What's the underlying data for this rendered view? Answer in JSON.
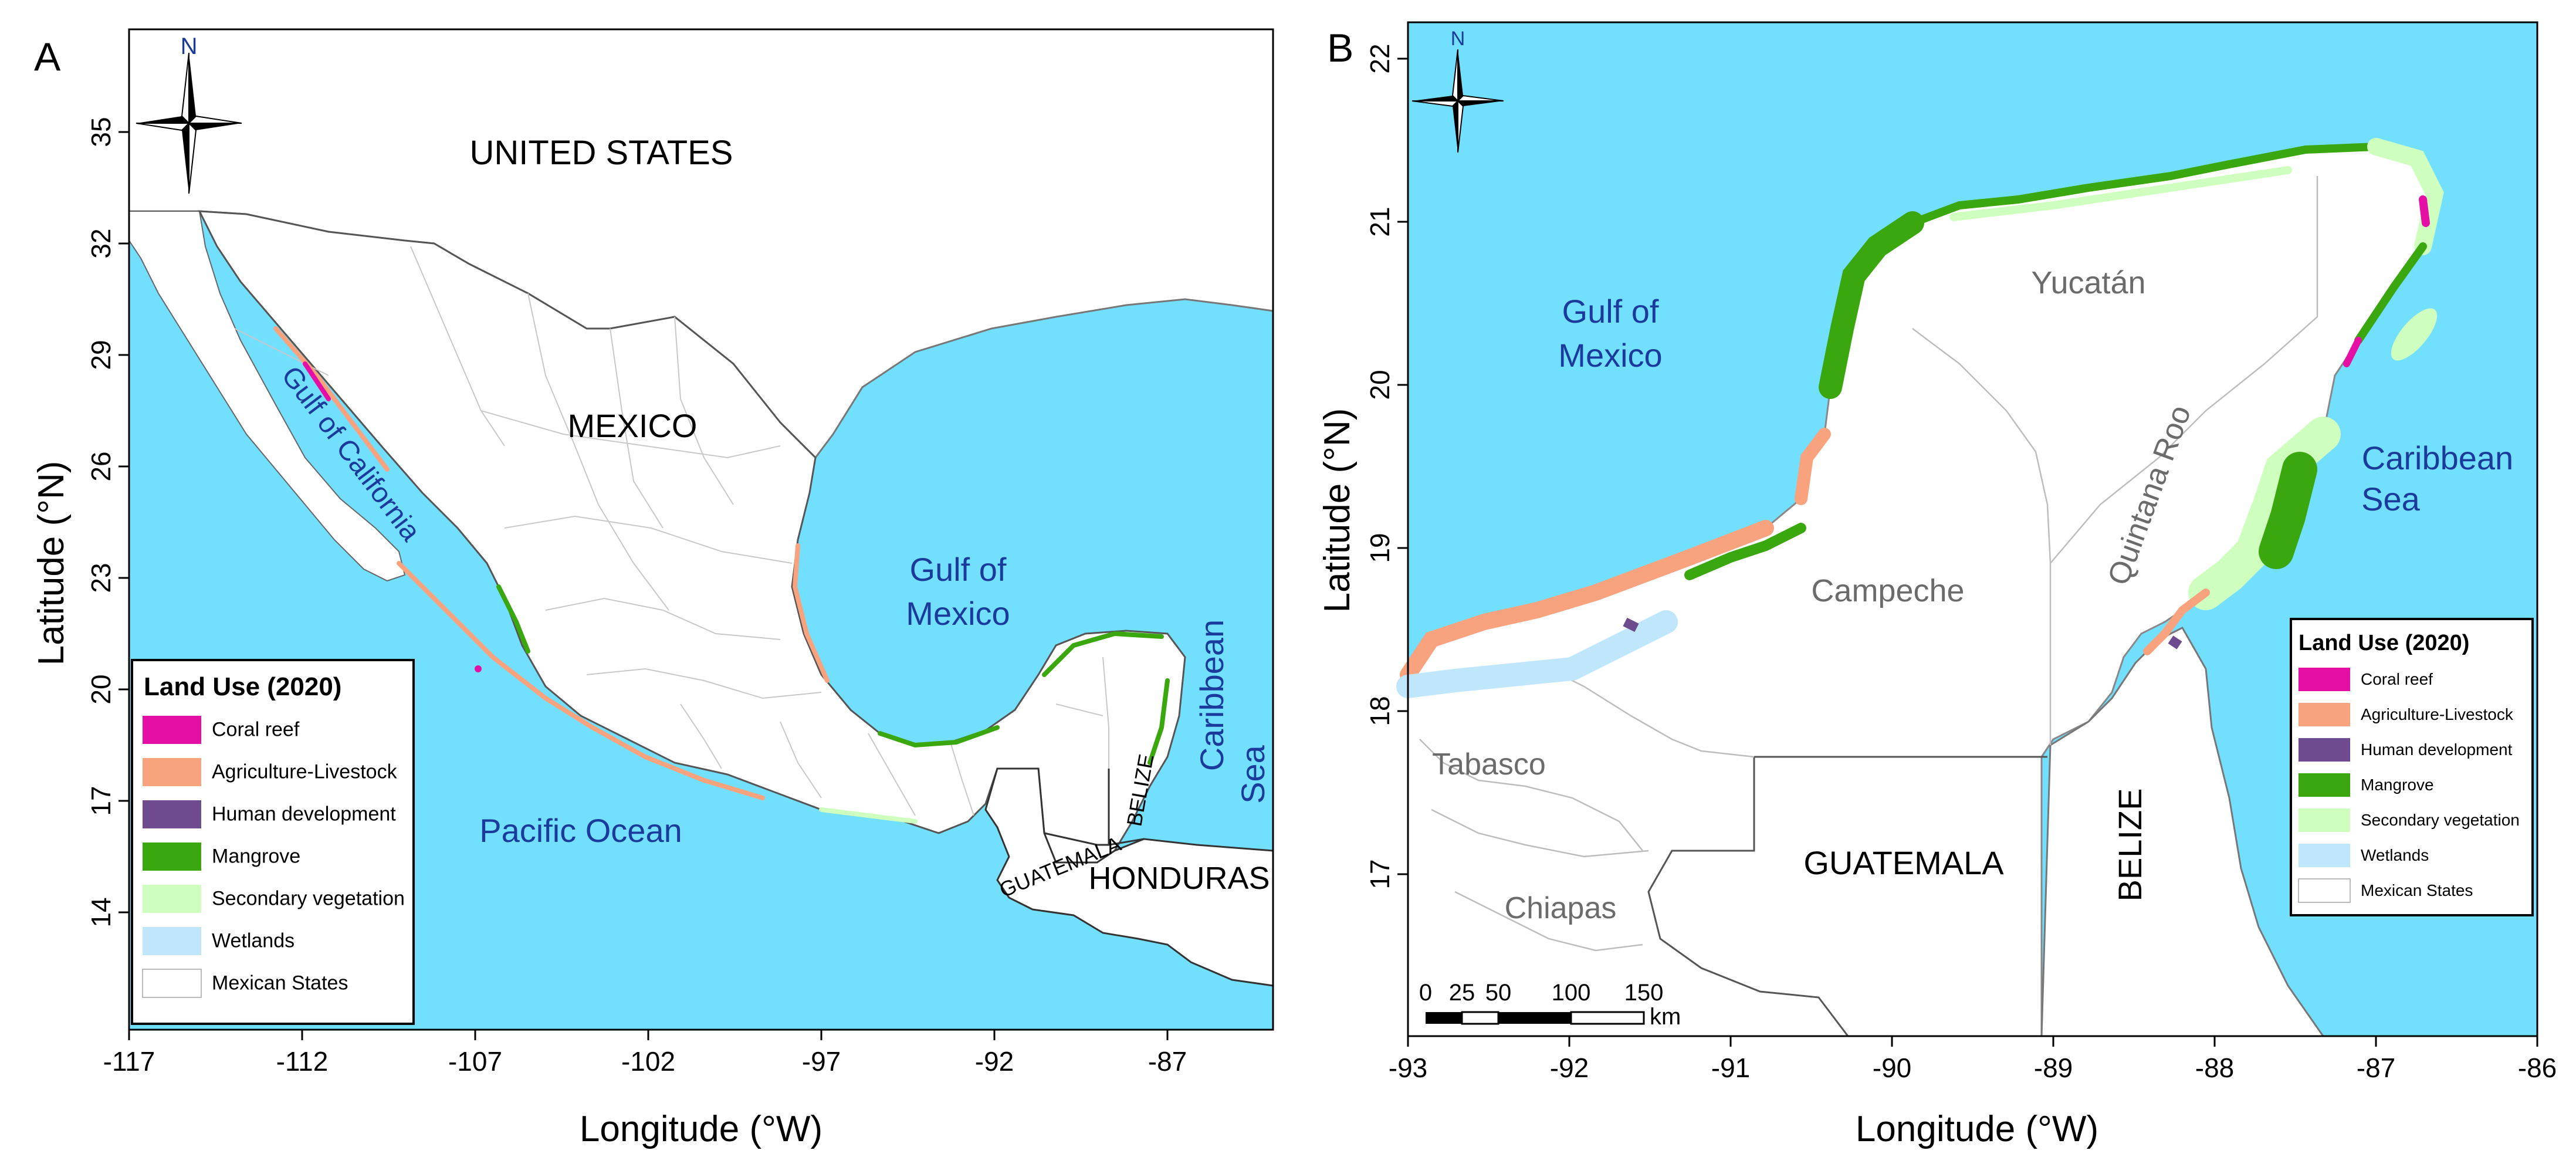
{
  "colors": {
    "ocean": "#73dfff",
    "land": "#ffffff",
    "coral_reef": "#e60fa5",
    "agriculture": "#f8a27e",
    "human_development": "#6e4a8e",
    "mangrove": "#3aa70e",
    "secondary_vegetation": "#cfffbf",
    "wetlands": "#bfe6fb",
    "sea_label": "#1a3a9c",
    "state_label": "#6b6b6b"
  },
  "legend": {
    "title": "Land Use (2020)",
    "items": [
      {
        "label": "Coral reef",
        "color": "#e60fa5"
      },
      {
        "label": "Agriculture-Livestock",
        "color": "#f8a27e"
      },
      {
        "label": "Human development",
        "color": "#6e4a8e"
      },
      {
        "label": "Mangrove",
        "color": "#3aa70e"
      },
      {
        "label": "Secondary vegetation",
        "color": "#cfffbf"
      },
      {
        "label": "Wetlands",
        "color": "#bfe6fb"
      },
      {
        "label": "Mexican States",
        "color": "#ffffff"
      }
    ]
  },
  "panel_a": {
    "letter": "A",
    "north": "N",
    "xlabel": "Longitude (°W)",
    "ylabel": "Latitude (°N)",
    "x_ticks": [
      "-117",
      "-112",
      "-107",
      "-102",
      "-97",
      "-92",
      "-87"
    ],
    "y_ticks": [
      "14",
      "17",
      "20",
      "23",
      "26",
      "29",
      "32",
      "35"
    ],
    "labels": {
      "united_states": "UNITED STATES",
      "mexico": "MEXICO",
      "gulf_california": "Gulf of California",
      "gulf_mexico_1": "Gulf of",
      "gulf_mexico_2": "Mexico",
      "pacific": "Pacific Ocean",
      "caribbean_1": "Caribbean",
      "caribbean_2": "Sea",
      "guatemala": "GUATEMALA",
      "belize": "BELIZE",
      "honduras": "HONDURAS"
    }
  },
  "panel_b": {
    "letter": "B",
    "north": "N",
    "xlabel": "Longitude (°W)",
    "ylabel": "Latitude (°N)",
    "x_ticks": [
      "-93",
      "-92",
      "-91",
      "-90",
      "-89",
      "-88",
      "-87",
      "-86"
    ],
    "y_ticks": [
      "17",
      "18",
      "19",
      "20",
      "21",
      "22"
    ],
    "labels": {
      "gulf_mexico_1": "Gulf of",
      "gulf_mexico_2": "Mexico",
      "yucatan": "Yucatán",
      "campeche": "Campeche",
      "quintana_roo": "Quintana Roo",
      "caribbean_1": "Caribbean",
      "caribbean_2": "Sea",
      "tabasco": "Tabasco",
      "chiapas": "Chiapas",
      "guatemala": "GUATEMALA",
      "belize": "BELIZE"
    },
    "scale_bar": {
      "ticks": [
        "0",
        "25",
        "50",
        "100",
        "150"
      ],
      "unit": "km"
    }
  }
}
